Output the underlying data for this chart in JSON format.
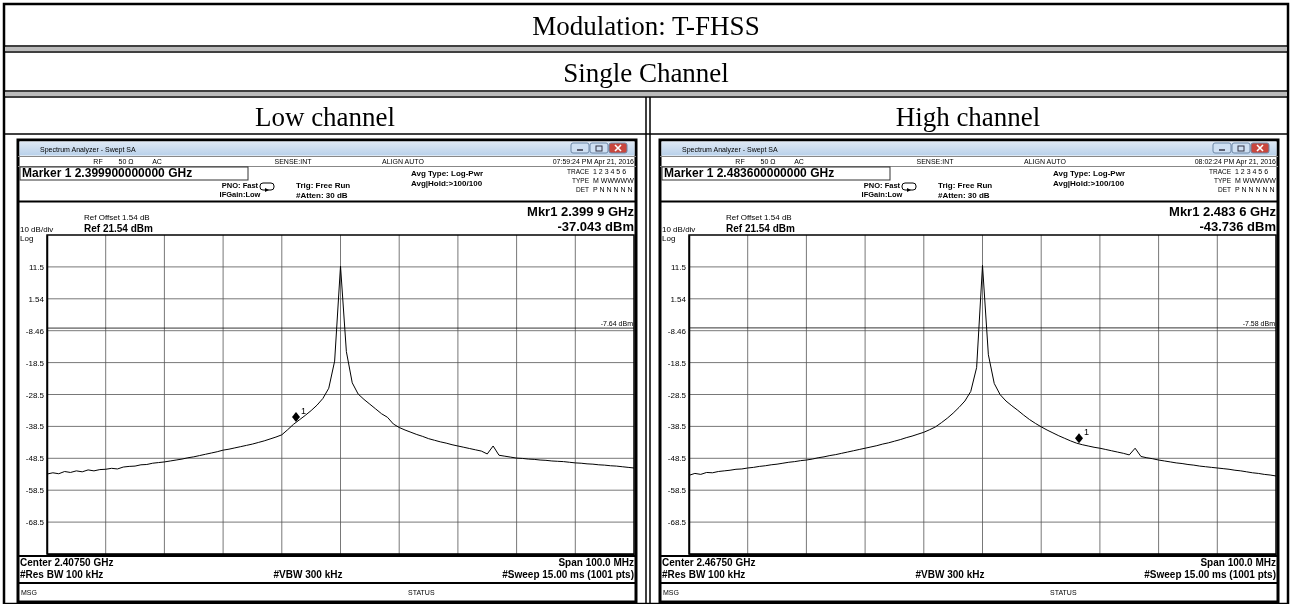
{
  "chart_data": [
    {
      "type": "other",
      "title": "Modulation: T-FHSS",
      "subtitle": "Single Channel"
    },
    {
      "type": "line",
      "title": "Low channel",
      "ylim": [
        -78.46,
        21.54
      ],
      "categories": [
        null,
        null,
        null,
        null,
        null,
        null,
        null,
        null,
        null,
        null,
        null,
        null,
        null,
        null,
        null,
        null,
        null,
        null,
        null,
        null,
        null,
        null,
        null,
        null,
        null,
        null,
        null,
        null,
        null,
        null,
        null,
        null,
        null,
        null,
        null,
        null,
        null,
        null,
        null,
        null,
        null,
        null,
        null,
        null,
        null,
        null,
        null,
        null,
        null,
        null,
        null,
        null,
        null,
        null,
        null,
        null,
        null,
        null,
        null,
        null,
        null,
        null,
        null,
        null,
        null,
        null,
        null,
        null,
        null,
        null,
        null,
        null,
        null,
        null,
        null,
        null,
        null,
        null,
        null,
        null,
        null,
        null,
        null,
        null,
        null,
        null,
        null,
        null,
        null,
        null,
        null,
        null,
        null,
        null,
        null,
        null,
        null,
        null,
        null,
        null,
        null
      ],
      "yticks": [
        {
          "value": 11.54,
          "label": "11.5"
        },
        {
          "value": 1.54,
          "label": "1.54"
        },
        {
          "value": -8.46,
          "label": "-8.46"
        },
        {
          "value": -18.46,
          "label": "-18.5"
        },
        {
          "value": -28.46,
          "label": "-28.5"
        },
        {
          "value": -38.46,
          "label": "-38.5"
        },
        {
          "value": -48.46,
          "label": "-48.5"
        },
        {
          "value": -58.46,
          "label": "-58.5"
        },
        {
          "value": -68.46,
          "label": "-68.5"
        }
      ],
      "grid": true,
      "tick_labels": "y",
      "ref_lines": [
        {
          "axis": "y",
          "value": -7.64,
          "label": "-7.64 dBm"
        }
      ],
      "series": [
        {
          "color": "#000000",
          "values": [
            -53.4,
            -53.0,
            -53.3,
            -52.6,
            -52.9,
            -52.4,
            -52.7,
            -52.1,
            -52.4,
            -52.0,
            -51.9,
            -51.6,
            -51.8,
            -51.2,
            -51.0,
            -50.9,
            -50.5,
            -50.4,
            -50.0,
            -49.8,
            -49.6,
            -49.3,
            -49.0,
            -48.7,
            -48.3,
            -48.0,
            -47.6,
            -47.2,
            -46.8,
            -46.4,
            -45.9,
            -45.6,
            -45.2,
            -44.8,
            -44.4,
            -44.0,
            -43.5,
            -43.0,
            -42.4,
            -41.8,
            -41.1,
            -39.5,
            -37.8,
            -36.4,
            -35.0,
            -33.5,
            -31.8,
            -29.7,
            -26.5,
            -18.0,
            11.8,
            -15.0,
            -24.8,
            -28.3,
            -30.0,
            -31.5,
            -33.0,
            -34.5,
            -35.6,
            -37.7,
            -38.8,
            -39.6,
            -40.3,
            -41.0,
            -41.6,
            -42.3,
            -42.8,
            -43.3,
            -43.7,
            -44.2,
            -44.6,
            -45.0,
            -45.4,
            -45.8,
            -46.2,
            -47.1,
            -44.6,
            -47.5,
            -47.8,
            -48.1,
            -48.4,
            -48.5,
            -48.7,
            -48.8,
            -49.0,
            -49.1,
            -49.3,
            -49.4,
            -49.5,
            -49.7,
            -49.9,
            -50.0,
            -50.2,
            -50.3,
            -50.5,
            -50.6,
            -50.8,
            -50.9,
            -51.1,
            -51.3,
            -51.5
          ]
        }
      ],
      "ylabel": "10 dB/div",
      "annotations": [
        "Spectrum Analyzer - Swept SA",
        "RF",
        "50 Ω",
        "AC",
        "SENSE:INT",
        "ALIGN AUTO",
        "07:59:24 PM Apr 21, 2016",
        "Marker 1 2.399900000000 GHz",
        "PNO: Fast",
        "IFGain:Low",
        "Trig: Free Run",
        "#Atten: 30 dB",
        "Avg Type: Log-Pwr",
        "Avg|Hold:>100/100",
        "TRACE",
        "1 2 3 4 5 6",
        "TYPE",
        "M WWWWW",
        "DET",
        "P N N N N N",
        "Ref Offset 1.54 dB",
        "Ref 21.54 dBm",
        "Log",
        "Mkr1 2.399 9 GHz",
        "-37.043 dBm",
        "Center 2.40750 GHz",
        "Span 100.0 MHz",
        "#Res BW 100 kHz",
        "#VBW 300 kHz",
        "#Sweep  15.00 ms (1001 pts)",
        "MSG",
        "STATUS",
        {
          "text": "1",
          "y": -37.043
        }
      ]
    },
    {
      "type": "line",
      "title": "High channel",
      "ylim": [
        -78.46,
        21.54
      ],
      "categories": [
        null,
        null,
        null,
        null,
        null,
        null,
        null,
        null,
        null,
        null,
        null,
        null,
        null,
        null,
        null,
        null,
        null,
        null,
        null,
        null,
        null,
        null,
        null,
        null,
        null,
        null,
        null,
        null,
        null,
        null,
        null,
        null,
        null,
        null,
        null,
        null,
        null,
        null,
        null,
        null,
        null,
        null,
        null,
        null,
        null,
        null,
        null,
        null,
        null,
        null,
        null,
        null,
        null,
        null,
        null,
        null,
        null,
        null,
        null,
        null,
        null,
        null,
        null,
        null,
        null,
        null,
        null,
        null,
        null,
        null,
        null,
        null,
        null,
        null,
        null,
        null,
        null,
        null,
        null,
        null,
        null,
        null,
        null,
        null,
        null,
        null,
        null,
        null,
        null,
        null,
        null,
        null,
        null,
        null,
        null,
        null,
        null,
        null,
        null,
        null,
        null
      ],
      "yticks": [
        {
          "value": 11.54,
          "label": "11.5"
        },
        {
          "value": 1.54,
          "label": "1.54"
        },
        {
          "value": -8.46,
          "label": "-8.46"
        },
        {
          "value": -18.46,
          "label": "-18.5"
        },
        {
          "value": -28.46,
          "label": "-28.5"
        },
        {
          "value": -38.46,
          "label": "-38.5"
        },
        {
          "value": -48.46,
          "label": "-48.5"
        },
        {
          "value": -58.46,
          "label": "-58.5"
        },
        {
          "value": -68.46,
          "label": "-68.5"
        }
      ],
      "grid": true,
      "tick_labels": "y",
      "ref_lines": [
        {
          "axis": "y",
          "value": -7.58,
          "label": "-7.58 dBm"
        }
      ],
      "series": [
        {
          "color": "#000000",
          "values": [
            -53.8,
            -53.2,
            -53.5,
            -52.9,
            -53.0,
            -52.6,
            -52.4,
            -52.2,
            -51.9,
            -51.8,
            -51.5,
            -51.3,
            -51.0,
            -50.8,
            -50.5,
            -50.3,
            -50.0,
            -49.7,
            -49.5,
            -49.2,
            -49.0,
            -48.7,
            -48.3,
            -48.0,
            -47.6,
            -47.3,
            -46.9,
            -46.5,
            -46.1,
            -45.7,
            -45.3,
            -44.9,
            -44.5,
            -44.0,
            -43.6,
            -43.1,
            -42.6,
            -42.0,
            -41.5,
            -40.9,
            -40.3,
            -39.5,
            -38.6,
            -37.3,
            -35.9,
            -34.3,
            -32.5,
            -30.5,
            -27.5,
            -20.0,
            12.0,
            -16.0,
            -25.0,
            -28.5,
            -30.5,
            -32.0,
            -33.4,
            -34.9,
            -36.3,
            -37.5,
            -38.6,
            -39.6,
            -40.5,
            -41.4,
            -42.2,
            -43.0,
            -43.7,
            -44.2,
            -44.6,
            -45.0,
            -45.3,
            -45.7,
            -46.1,
            -46.5,
            -46.9,
            -47.4,
            -45.3,
            -47.9,
            -48.3,
            -48.6,
            -49.0,
            -49.3,
            -49.6,
            -49.9,
            -50.1,
            -50.4,
            -50.6,
            -50.9,
            -51.1,
            -51.3,
            -51.5,
            -51.7,
            -51.9,
            -52.2,
            -52.4,
            -52.7,
            -53.0,
            -53.2,
            -53.5,
            -53.7,
            -54.0
          ]
        }
      ],
      "ylabel": "10 dB/div",
      "annotations": [
        "Spectrum Analyzer - Swept SA",
        "RF",
        "50 Ω",
        "AC",
        "SENSE:INT",
        "ALIGN AUTO",
        "08:02:24 PM Apr 21, 2016",
        "Marker 1 2.483600000000 GHz",
        "PNO: Fast",
        "IFGain:Low",
        "Trig: Free Run",
        "#Atten: 30 dB",
        "Avg Type: Log-Pwr",
        "Avg|Hold:>100/100",
        "TRACE",
        "1 2 3 4 5 6",
        "TYPE",
        "M WWWWW",
        "DET",
        "P N N N N N",
        "Ref Offset 1.54 dB",
        "Ref 21.54 dBm",
        "Log",
        "Mkr1 2.483 6 GHz",
        "-43.736 dBm",
        "Center 2.46750 GHz",
        "Span 100.0 MHz",
        "#Res BW 100 kHz",
        "#VBW 300 kHz",
        "#Sweep  15.00 ms (1001 pts)",
        "MSG",
        "STATUS",
        {
          "text": "1",
          "y": -43.736
        }
      ]
    }
  ]
}
